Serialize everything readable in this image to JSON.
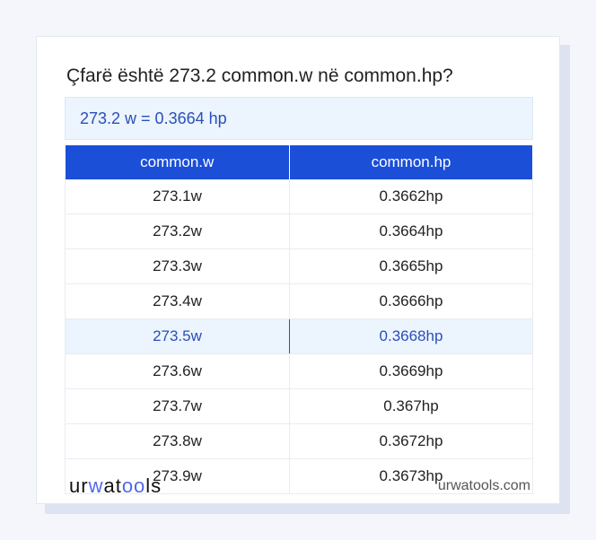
{
  "title": "Çfarë është 273.2 common.w në common.hp?",
  "result": "273.2 w = 0.3664 hp",
  "columns": [
    "common.w",
    "common.hp"
  ],
  "rows": [
    [
      "273.1w",
      "0.3662hp"
    ],
    [
      "273.2w",
      "0.3664hp"
    ],
    [
      "273.3w",
      "0.3665hp"
    ],
    [
      "273.4w",
      "0.3666hp"
    ],
    [
      "273.5w",
      "0.3668hp"
    ],
    [
      "273.6w",
      "0.3669hp"
    ],
    [
      "273.7w",
      "0.367hp"
    ],
    [
      "273.8w",
      "0.3672hp"
    ],
    [
      "273.9w",
      "0.3673hp"
    ]
  ],
  "highlighted_row": 4,
  "logo": "urwatools",
  "site": "urwatools.com",
  "colors": {
    "accent": "#1c4fd8",
    "highlight": "#ecf4fe"
  }
}
